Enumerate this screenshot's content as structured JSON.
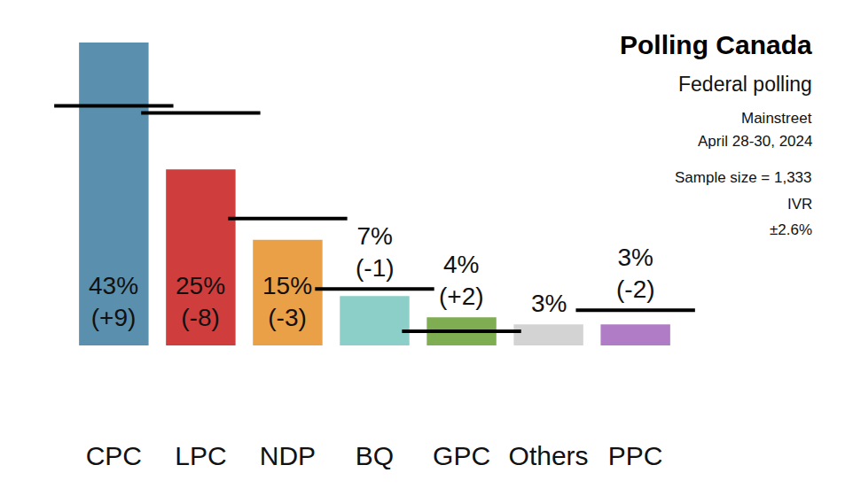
{
  "chart_data": {
    "type": "bar",
    "title": "Polling Canada",
    "subtitle": "Federal polling",
    "notes": [
      "Mainstreet",
      "April 28-30, 2024",
      "Sample size = 1,333",
      "IVR",
      "±2.6%"
    ],
    "categories": [
      "CPC",
      "LPC",
      "NDP",
      "BQ",
      "GPC",
      "Others",
      "PPC"
    ],
    "values": [
      43,
      25,
      15,
      7,
      4,
      3,
      3
    ],
    "value_labels": [
      "43%",
      "25%",
      "15%",
      "7%",
      "4%",
      "3%",
      "3%"
    ],
    "changes": [
      9,
      -8,
      -3,
      -1,
      2,
      null,
      -2
    ],
    "change_labels": [
      "(+9)",
      "(-8)",
      "(-3)",
      "(-1)",
      "(+2)",
      null,
      "(-2)"
    ],
    "colors": [
      "#5b8fae",
      "#d03d3d",
      "#e9a046",
      "#8ccfc8",
      "#7fad52",
      "#d3d3d3",
      "#b07cc6"
    ],
    "ylim": [
      0,
      43
    ],
    "tick_labels": "x",
    "grid": false,
    "data_labels": true
  }
}
